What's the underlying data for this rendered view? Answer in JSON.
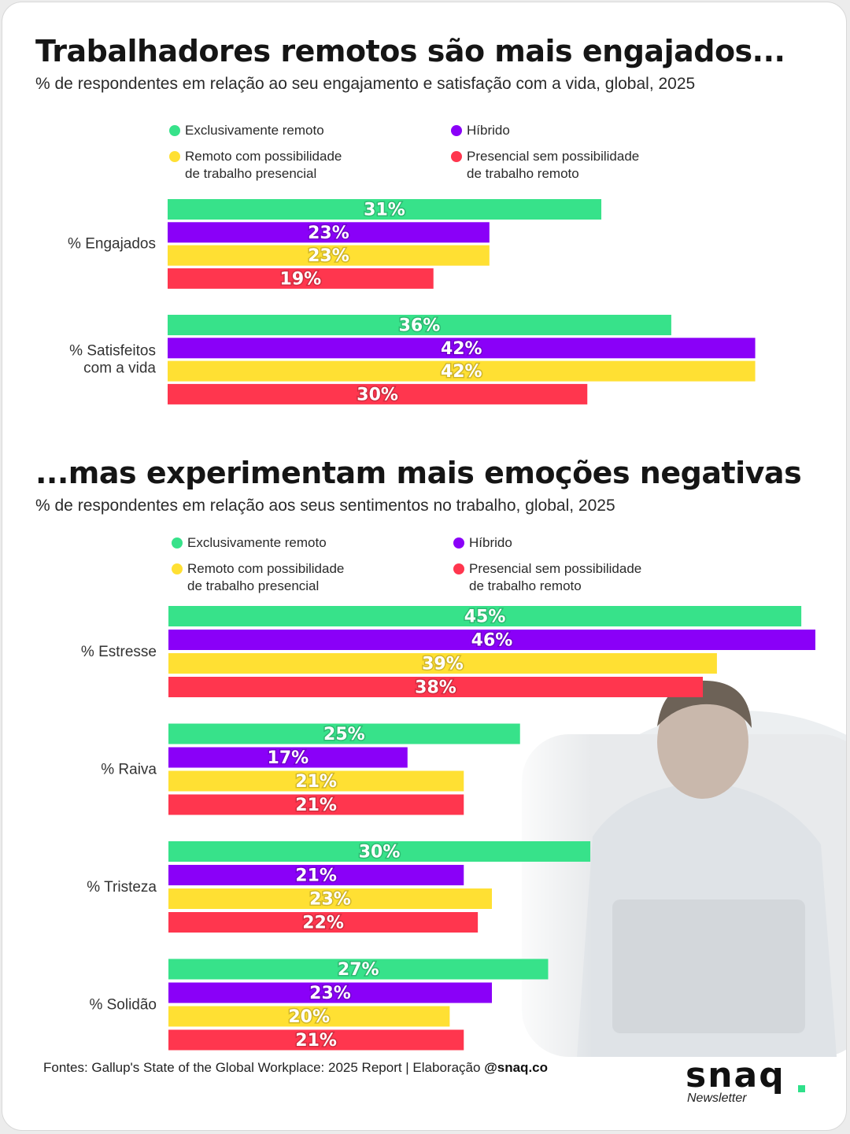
{
  "colors": {
    "remote": "#37e28a",
    "hybrid": "#8a00f8",
    "remote_onsite": "#ffe033",
    "onsite": "#ff364e"
  },
  "section1": {
    "title": "Trabalhadores remotos são mais engajados...",
    "subtitle": "% de respondentes em relação ao seu engajamento e satisfação com a vida, global, 2025",
    "legend": {
      "remote": "Exclusivamente remoto",
      "hybrid": "Híbrido",
      "remote_onsite_1": "Remoto com possibilidade",
      "remote_onsite_2": "de trabalho presencial",
      "onsite_1": "Presencial sem possibilidade",
      "onsite_2": "de trabalho remoto"
    }
  },
  "section2": {
    "title": "...mas experimentam mais emoções negativas",
    "subtitle": "% de respondentes em relação aos seus sentimentos no trabalho, global, 2025",
    "legend": {
      "remote": "Exclusivamente remoto",
      "hybrid": "Híbrido",
      "remote_onsite_1": "Remoto com possibilidade",
      "remote_onsite_2": "de trabalho presencial",
      "onsite_1": "Presencial sem possibilidade",
      "onsite_2": "de trabalho remoto"
    }
  },
  "chart_data": [
    {
      "type": "bar",
      "orientation": "horizontal",
      "title": "Trabalhadores remotos são mais engajados...",
      "categories": [
        [
          "% Engajados"
        ],
        [
          "% Satisfeitos",
          "com a vida"
        ]
      ],
      "series": [
        {
          "name": "Exclusivamente remoto",
          "key": "remote",
          "values": [
            31,
            36
          ]
        },
        {
          "name": "Híbrido",
          "key": "hybrid",
          "values": [
            23,
            42
          ]
        },
        {
          "name": "Remoto com possibilidade de trabalho presencial",
          "key": "remote_onsite",
          "values": [
            23,
            42
          ]
        },
        {
          "name": "Presencial sem possibilidade de trabalho remoto",
          "key": "onsite",
          "values": [
            19,
            30
          ]
        }
      ],
      "value_suffix": "%",
      "xlim": [
        0,
        44.5
      ]
    },
    {
      "type": "bar",
      "orientation": "horizontal",
      "title": "...mas experimentam mais emoções negativas",
      "categories": [
        [
          "% Estresse"
        ],
        [
          "% Raiva"
        ],
        [
          "% Tristeza"
        ],
        [
          "% Solidão"
        ]
      ],
      "series": [
        {
          "name": "Exclusivamente remoto",
          "key": "remote",
          "values": [
            45,
            25,
            30,
            27
          ]
        },
        {
          "name": "Híbrido",
          "key": "hybrid",
          "values": [
            46,
            17,
            21,
            23
          ]
        },
        {
          "name": "Remoto com possibilidade de trabalho presencial",
          "key": "remote_onsite",
          "values": [
            39,
            21,
            23,
            20
          ]
        },
        {
          "name": "Presencial sem possibilidade de trabalho remoto",
          "key": "onsite",
          "values": [
            38,
            21,
            22,
            21
          ]
        }
      ],
      "value_suffix": "%",
      "xlim": [
        0,
        46
      ]
    }
  ],
  "footer": {
    "text": "Fontes: Gallup's State of the Global Workplace: 2025 Report | Elaboração",
    "handle": "@snaq.co"
  },
  "logo": {
    "word": "snaq",
    "sub": "Newsletter"
  }
}
